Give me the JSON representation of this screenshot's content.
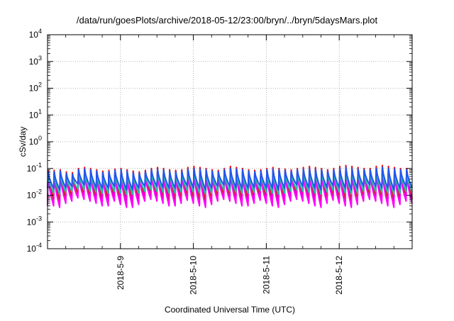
{
  "chart_data": {
    "type": "line",
    "title": "/data/run/goesPlots/archive/2018-05-12/23:00/bryn/../bryn/5daysMars.plot",
    "xlabel": "Coordinated Universal Time (UTC)",
    "ylabel": "cSv/day",
    "yscale": "log",
    "ylim": [
      0.0001,
      10000
    ],
    "xlim": [
      "2018-05-08 00:00",
      "2018-05-13 00:00"
    ],
    "grid": true,
    "x_tick_labels": [
      "2018-5-9",
      "2018-5-10",
      "2018-5-11",
      "2018-5-12"
    ],
    "y_ticks": [
      {
        "base": "10",
        "exp": "-4"
      },
      {
        "base": "10",
        "exp": "-3"
      },
      {
        "base": "10",
        "exp": "-2"
      },
      {
        "base": "10",
        "exp": "-1"
      },
      {
        "base": "10",
        "exp": "0"
      },
      {
        "base": "10",
        "exp": "1"
      },
      {
        "base": "10",
        "exp": "2"
      },
      {
        "base": "10",
        "exp": "3"
      },
      {
        "base": "10",
        "exp": "4"
      }
    ],
    "sample_interval_hours": 2,
    "series": [
      {
        "color": "#ff0000",
        "peaks": [
          0.085,
          0.085,
          0.09,
          0.075,
          0.07,
          0.1,
          0.11,
          0.1,
          0.09,
          0.08,
          0.085,
          0.095,
          0.1,
          0.09,
          0.08,
          0.075,
          0.085,
          0.1,
          0.11,
          0.1,
          0.09,
          0.085,
          0.09,
          0.11,
          0.12,
          0.11,
          0.1,
          0.09,
          0.085,
          0.1,
          0.12,
          0.11,
          0.1,
          0.09,
          0.085,
          0.09,
          0.1,
          0.11,
          0.1,
          0.095,
          0.09,
          0.1,
          0.11,
          0.12,
          0.11,
          0.1,
          0.09,
          0.1,
          0.12,
          0.13,
          0.12,
          0.11,
          0.1,
          0.1,
          0.12,
          0.13,
          0.12,
          0.11,
          0.1,
          0.1
        ],
        "lows": [
          0.007,
          0.006,
          0.008,
          0.009,
          0.012,
          0.011,
          0.009,
          0.008,
          0.007,
          0.007,
          0.009,
          0.007,
          0.006,
          0.006,
          0.007,
          0.009,
          0.011,
          0.009,
          0.008,
          0.007,
          0.007,
          0.008,
          0.01,
          0.008,
          0.007,
          0.006,
          0.007,
          0.009,
          0.011,
          0.009,
          0.008,
          0.007,
          0.007,
          0.008,
          0.01,
          0.008,
          0.007,
          0.006,
          0.007,
          0.009,
          0.011,
          0.009,
          0.008,
          0.007,
          0.006,
          0.008,
          0.01,
          0.008,
          0.007,
          0.006,
          0.007,
          0.009,
          0.011,
          0.009,
          0.008,
          0.007,
          0.006,
          0.007,
          0.009,
          0.008
        ]
      },
      {
        "color": "#cc2222",
        "peaks": [
          0.08,
          0.08,
          0.085,
          0.07,
          0.065,
          0.095,
          0.1,
          0.095,
          0.085,
          0.075,
          0.08,
          0.09,
          0.095,
          0.085,
          0.075,
          0.07,
          0.08,
          0.095,
          0.1,
          0.095,
          0.085,
          0.08,
          0.085,
          0.1,
          0.11,
          0.1,
          0.095,
          0.085,
          0.08,
          0.095,
          0.11,
          0.1,
          0.095,
          0.085,
          0.08,
          0.085,
          0.095,
          0.1,
          0.095,
          0.09,
          0.085,
          0.095,
          0.1,
          0.11,
          0.1,
          0.095,
          0.085,
          0.095,
          0.11,
          0.12,
          0.11,
          0.1,
          0.095,
          0.095,
          0.11,
          0.12,
          0.11,
          0.1,
          0.095,
          0.095
        ],
        "lows": [
          0.006,
          0.005,
          0.007,
          0.008,
          0.011,
          0.01,
          0.008,
          0.007,
          0.006,
          0.006,
          0.008,
          0.006,
          0.005,
          0.005,
          0.006,
          0.008,
          0.01,
          0.008,
          0.007,
          0.006,
          0.006,
          0.007,
          0.009,
          0.007,
          0.006,
          0.005,
          0.006,
          0.008,
          0.01,
          0.008,
          0.007,
          0.006,
          0.006,
          0.007,
          0.009,
          0.007,
          0.006,
          0.005,
          0.006,
          0.008,
          0.01,
          0.008,
          0.007,
          0.006,
          0.005,
          0.007,
          0.009,
          0.007,
          0.006,
          0.005,
          0.006,
          0.008,
          0.01,
          0.008,
          0.007,
          0.006,
          0.005,
          0.006,
          0.008,
          0.007
        ]
      },
      {
        "color": "#ff00ff",
        "peaks": [
          0.05,
          0.05,
          0.055,
          0.045,
          0.04,
          0.06,
          0.065,
          0.06,
          0.055,
          0.05,
          0.05,
          0.055,
          0.06,
          0.055,
          0.05,
          0.045,
          0.05,
          0.06,
          0.065,
          0.06,
          0.055,
          0.05,
          0.055,
          0.065,
          0.07,
          0.065,
          0.06,
          0.055,
          0.05,
          0.06,
          0.07,
          0.065,
          0.06,
          0.055,
          0.05,
          0.055,
          0.06,
          0.065,
          0.06,
          0.055,
          0.055,
          0.06,
          0.065,
          0.07,
          0.065,
          0.06,
          0.055,
          0.06,
          0.07,
          0.075,
          0.07,
          0.065,
          0.06,
          0.06,
          0.07,
          0.075,
          0.07,
          0.065,
          0.06,
          0.06
        ],
        "lows": [
          0.004,
          0.0035,
          0.005,
          0.006,
          0.008,
          0.007,
          0.006,
          0.005,
          0.004,
          0.004,
          0.006,
          0.0045,
          0.0035,
          0.0035,
          0.0045,
          0.006,
          0.007,
          0.006,
          0.005,
          0.004,
          0.004,
          0.005,
          0.0065,
          0.005,
          0.004,
          0.0035,
          0.0045,
          0.006,
          0.007,
          0.006,
          0.005,
          0.004,
          0.004,
          0.005,
          0.0065,
          0.005,
          0.004,
          0.0035,
          0.0045,
          0.006,
          0.007,
          0.006,
          0.005,
          0.004,
          0.0035,
          0.005,
          0.0065,
          0.005,
          0.004,
          0.0035,
          0.0045,
          0.006,
          0.007,
          0.006,
          0.005,
          0.004,
          0.0035,
          0.0045,
          0.006,
          0.005
        ]
      },
      {
        "color": "#22bbaa",
        "peaks": [
          0.06,
          0.06,
          0.065,
          0.055,
          0.05,
          0.07,
          0.075,
          0.07,
          0.065,
          0.06,
          0.06,
          0.065,
          0.07,
          0.065,
          0.06,
          0.055,
          0.06,
          0.07,
          0.075,
          0.07,
          0.065,
          0.06,
          0.065,
          0.075,
          0.08,
          0.075,
          0.07,
          0.065,
          0.06,
          0.07,
          0.08,
          0.075,
          0.07,
          0.065,
          0.06,
          0.065,
          0.07,
          0.075,
          0.07,
          0.065,
          0.065,
          0.07,
          0.075,
          0.08,
          0.075,
          0.07,
          0.065,
          0.07,
          0.08,
          0.085,
          0.08,
          0.075,
          0.07,
          0.07,
          0.08,
          0.085,
          0.08,
          0.075,
          0.07,
          0.07
        ],
        "lows": [
          0.012,
          0.011,
          0.013,
          0.014,
          0.017,
          0.016,
          0.014,
          0.013,
          0.012,
          0.012,
          0.014,
          0.012,
          0.011,
          0.011,
          0.012,
          0.014,
          0.016,
          0.014,
          0.013,
          0.012,
          0.012,
          0.013,
          0.015,
          0.013,
          0.012,
          0.011,
          0.012,
          0.014,
          0.016,
          0.014,
          0.013,
          0.012,
          0.012,
          0.013,
          0.015,
          0.013,
          0.012,
          0.011,
          0.012,
          0.014,
          0.016,
          0.014,
          0.013,
          0.012,
          0.011,
          0.013,
          0.015,
          0.013,
          0.012,
          0.011,
          0.012,
          0.014,
          0.016,
          0.014,
          0.013,
          0.012,
          0.011,
          0.012,
          0.014,
          0.013
        ]
      },
      {
        "color": "#2255ee",
        "peaks": [
          0.075,
          0.075,
          0.08,
          0.065,
          0.06,
          0.09,
          0.095,
          0.09,
          0.08,
          0.07,
          0.075,
          0.085,
          0.09,
          0.08,
          0.07,
          0.065,
          0.075,
          0.09,
          0.095,
          0.09,
          0.08,
          0.075,
          0.08,
          0.095,
          0.1,
          0.095,
          0.09,
          0.08,
          0.075,
          0.09,
          0.1,
          0.095,
          0.09,
          0.08,
          0.075,
          0.08,
          0.09,
          0.095,
          0.09,
          0.085,
          0.08,
          0.09,
          0.095,
          0.1,
          0.095,
          0.09,
          0.08,
          0.09,
          0.1,
          0.11,
          0.1,
          0.095,
          0.09,
          0.09,
          0.1,
          0.11,
          0.1,
          0.095,
          0.09,
          0.09
        ],
        "lows": [
          0.018,
          0.016,
          0.019,
          0.021,
          0.026,
          0.024,
          0.021,
          0.019,
          0.018,
          0.018,
          0.021,
          0.018,
          0.016,
          0.016,
          0.018,
          0.021,
          0.024,
          0.021,
          0.019,
          0.018,
          0.018,
          0.019,
          0.022,
          0.019,
          0.018,
          0.016,
          0.018,
          0.021,
          0.024,
          0.021,
          0.019,
          0.018,
          0.018,
          0.019,
          0.022,
          0.019,
          0.018,
          0.016,
          0.018,
          0.021,
          0.024,
          0.021,
          0.019,
          0.018,
          0.016,
          0.019,
          0.022,
          0.019,
          0.018,
          0.016,
          0.018,
          0.021,
          0.024,
          0.021,
          0.019,
          0.018,
          0.016,
          0.018,
          0.021,
          0.019
        ]
      }
    ]
  }
}
